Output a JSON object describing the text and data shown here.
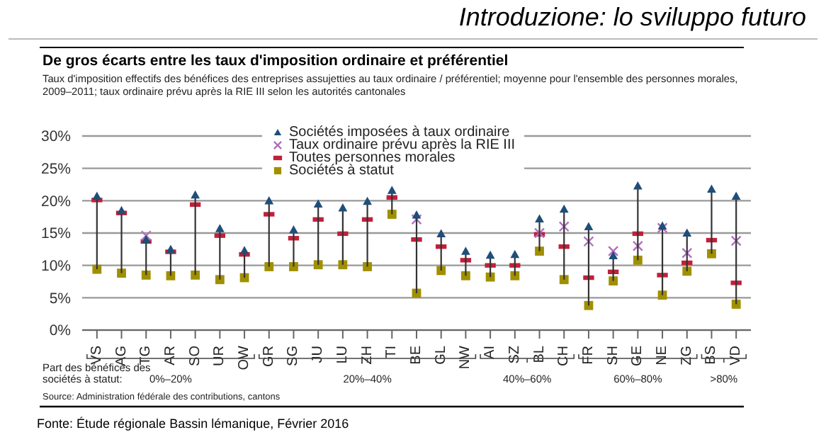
{
  "chart_data": {
    "type": "scatter",
    "title": "Introduzione: lo sviluppo futuro",
    "subtitle": "De gros écarts entre les taux d'imposition ordinaire et préférentiel",
    "categories": [
      "VS",
      "AG",
      "TG",
      "AR",
      "SO",
      "UR",
      "OW",
      "GR",
      "SG",
      "JU",
      "LU",
      "ZH",
      "TI",
      "BE",
      "GL",
      "NW",
      "AI",
      "SZ",
      "BL",
      "CH",
      "FR",
      "SH",
      "GE",
      "NE",
      "ZG",
      "BS",
      "VD"
    ],
    "series": [
      {
        "name": "Sociétés imposées à taux ordinaire",
        "color": "#1f4e79",
        "marker": "triangle",
        "values": [
          20.7,
          18.5,
          14.0,
          12.5,
          20.9,
          15.7,
          12.3,
          20.0,
          15.5,
          19.5,
          18.9,
          19.9,
          21.6,
          17.8,
          14.9,
          12.2,
          11.6,
          11.7,
          17.2,
          18.7,
          16.0,
          11.5,
          22.3,
          16.1,
          15.0,
          21.8,
          20.7
        ]
      },
      {
        "name": "Taux ordinaire prévu après la RIE III",
        "color": "#b070c0",
        "marker": "cross",
        "values": [
          null,
          null,
          14.6,
          null,
          null,
          null,
          null,
          null,
          null,
          null,
          null,
          null,
          null,
          17.1,
          null,
          null,
          null,
          null,
          15.0,
          16.0,
          13.7,
          12.2,
          13.0,
          15.8,
          11.9,
          null,
          13.8
        ]
      },
      {
        "name": "Toutes personnes morales",
        "color": "#c0203a",
        "values": [
          20.1,
          18.1,
          13.7,
          12.1,
          19.4,
          14.6,
          11.7,
          17.9,
          14.2,
          17.1,
          14.9,
          17.1,
          20.5,
          14.0,
          12.9,
          10.8,
          10.0,
          10.0,
          14.8,
          12.9,
          8.1,
          9.0,
          14.9,
          8.5,
          10.4,
          13.9,
          7.3
        ]
      },
      {
        "name": "Sociétés à statut",
        "color": "#a09000",
        "marker": "square",
        "values": [
          9.4,
          8.8,
          8.5,
          8.4,
          8.5,
          7.8,
          8.1,
          9.8,
          9.8,
          10.1,
          10.1,
          9.8,
          17.9,
          5.7,
          9.2,
          8.4,
          8.2,
          8.4,
          12.2,
          7.8,
          3.8,
          7.6,
          10.8,
          5.4,
          9.1,
          11.8,
          4.0
        ]
      }
    ],
    "ylim": [
      0,
      30
    ],
    "yticks": [
      {
        "value": 0,
        "label": "0%"
      },
      {
        "value": 5,
        "label": "5%"
      },
      {
        "value": 10,
        "label": "10%"
      },
      {
        "value": 15,
        "label": "15%"
      },
      {
        "value": 20,
        "label": "20%"
      },
      {
        "value": 25,
        "label": "25%"
      },
      {
        "value": 30,
        "label": "30%"
      }
    ],
    "grid": "y",
    "legend": "top",
    "annotations": [
      "Taux d'imposition effectifs des bénéfices des entreprises assujetties au taux ordinaire / préférentiel; moyenne pour l'ensemble des personnes morales, 2009–2011; taux ordinaire prévu après la RIE III selon les autorités cantonales",
      "Part des bénéfices des sociétés à statut:",
      "0%–20%",
      "20%–40%",
      "40%–60%",
      "60%–80%",
      ">80%",
      "Source: Administration fédérale des contributions, cantons",
      "Fonte: Étude régionale Bassin lémanique, Février 2016"
    ]
  }
}
